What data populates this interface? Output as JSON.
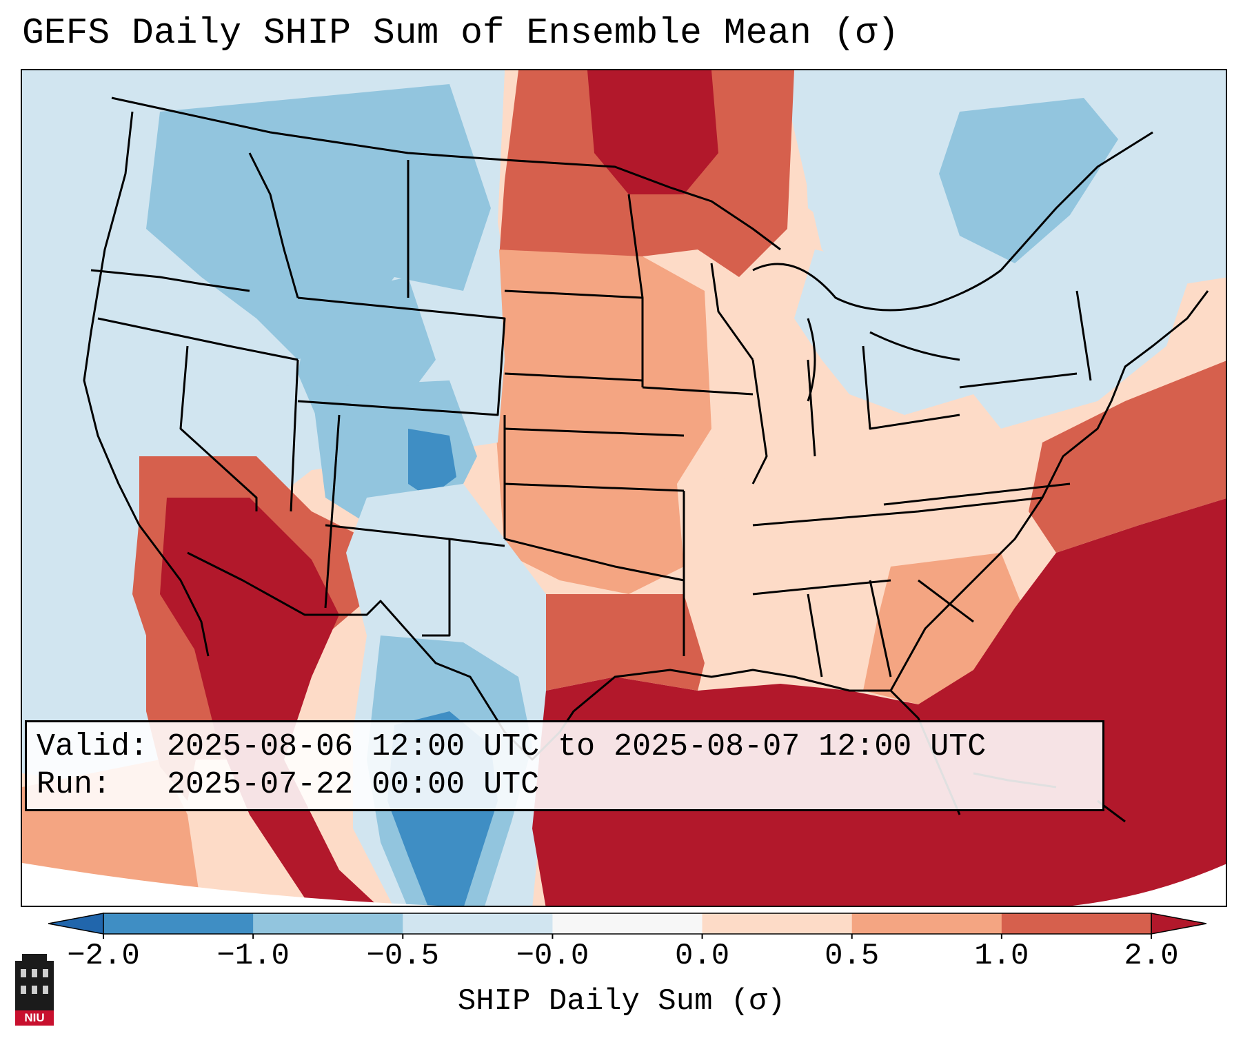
{
  "title": "GEFS Daily SHIP Sum of Ensemble Mean (σ)",
  "info": {
    "valid_label": "Valid:",
    "valid_value": "2025-08-06 12:00 UTC to 2025-08-07 12:00 UTC",
    "run_label": "Run:",
    "run_value": "2025-07-22 00:00 UTC"
  },
  "colorbar": {
    "label": "SHIP Daily Sum (σ)",
    "ticks": [
      "−2.0",
      "−1.0",
      "−0.5",
      "−0.0",
      "0.0",
      "0.5",
      "1.0",
      "2.0"
    ],
    "bins": [
      {
        "color": "#3f8ec4"
      },
      {
        "color": "#92c5de"
      },
      {
        "color": "#d1e5f0"
      },
      {
        "color": "#f7f7f7"
      },
      {
        "color": "#fddbc7"
      },
      {
        "color": "#f4a582"
      },
      {
        "color": "#d6604d"
      }
    ],
    "under_color": "#2166ac",
    "over_color": "#b2182b",
    "extend": "both"
  },
  "map": {
    "projection": "Lambert Conformal (CONUS)",
    "levels": {
      "neg2": "#3f8ec4",
      "neg1": "#92c5de",
      "neg05": "#d1e5f0",
      "pos05": "#fddbc7",
      "pos1": "#f4a582",
      "pos15": "#d6604d",
      "pos2": "#b2182b"
    },
    "regions": [
      {
        "name": "Pacific Northwest",
        "level": "neg1"
      },
      {
        "name": "Northern Rockies",
        "level": "neg1"
      },
      {
        "name": "Great Basin",
        "level": "neg05"
      },
      {
        "name": "Colorado Rockies",
        "level": "neg2"
      },
      {
        "name": "Southern California / Arizona",
        "level": "pos2"
      },
      {
        "name": "Northern Plains",
        "level": "pos15"
      },
      {
        "name": "Central Plains",
        "level": "pos1"
      },
      {
        "name": "Midwest",
        "level": "pos05"
      },
      {
        "name": "Great Lakes",
        "level": "neg05"
      },
      {
        "name": "Northeast",
        "level": "neg05"
      },
      {
        "name": "Texas / New Mexico",
        "level": "neg05"
      },
      {
        "name": "Southeast",
        "level": "pos05"
      },
      {
        "name": "Gulf of Mexico",
        "level": "pos2"
      },
      {
        "name": "Western Atlantic",
        "level": "pos2"
      },
      {
        "name": "Northern Mexico",
        "level": "neg2"
      },
      {
        "name": "Ontario / Quebec",
        "level": "neg1"
      }
    ]
  },
  "logo": {
    "text": "NIU"
  }
}
